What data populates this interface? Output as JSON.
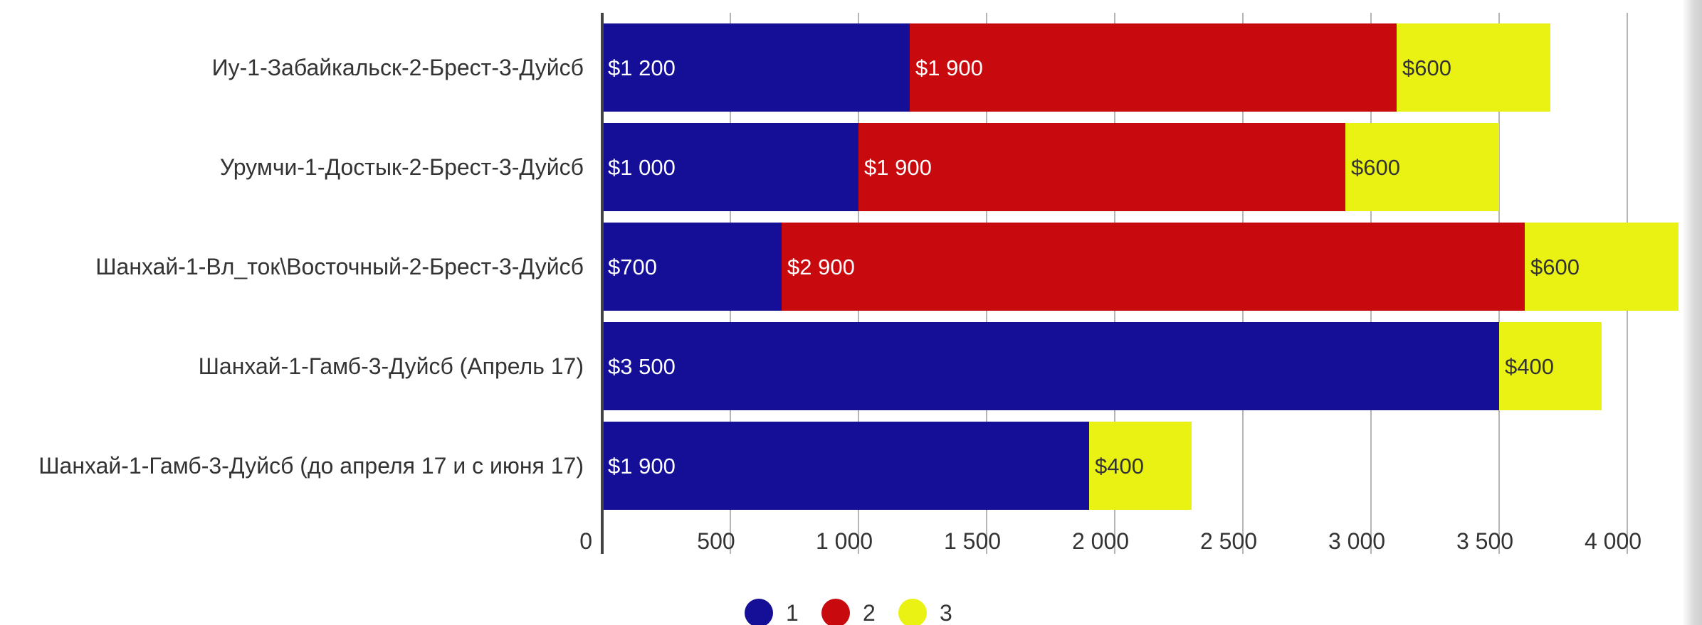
{
  "chart_data": {
    "type": "bar",
    "orientation": "horizontal",
    "stacked": true,
    "categories": [
      "Иу-1-Забайкальск-2-Брест-3-Дуйсб",
      "Урумчи-1-Достык-2-Брест-3-Дуйсб",
      "Шанхай-1-Вл_ток\\Восточный-2-Брест-3-Дуйсб",
      "Шанхай-1-Гамб-3-Дуйсб (Апрель 17)",
      "Шанхай-1-Гамб-3-Дуйсб (до апреля 17 и с июня 17)"
    ],
    "series": [
      {
        "name": "1",
        "color": "#140f96",
        "label_color": "#ffffff",
        "values": [
          1200,
          1000,
          700,
          3500,
          1900
        ],
        "labels": [
          "$1 200",
          "$1 000",
          "$700",
          "$3 500",
          "$1 900"
        ]
      },
      {
        "name": "2",
        "color": "#c8090e",
        "label_color": "#ffffff",
        "values": [
          1900,
          1900,
          2900,
          0,
          0
        ],
        "labels": [
          "$1 900",
          "$1 900",
          "$2 900",
          "",
          ""
        ]
      },
      {
        "name": "3",
        "color": "#eaf214",
        "label_color": "#333333",
        "values": [
          600,
          600,
          600,
          400,
          400
        ],
        "labels": [
          "$600",
          "$600",
          "$600",
          "$400",
          "$400"
        ]
      }
    ],
    "xlim": [
      0,
      4200
    ],
    "xticks": [
      0,
      500,
      1000,
      1500,
      2000,
      2500,
      3000,
      3500,
      4000
    ],
    "xtick_labels": [
      "0",
      "500",
      "1 000",
      "1 500",
      "2 000",
      "2 500",
      "3 000",
      "3 500",
      "4 000"
    ],
    "grid": "vertical",
    "legend_position": "bottom-center"
  }
}
